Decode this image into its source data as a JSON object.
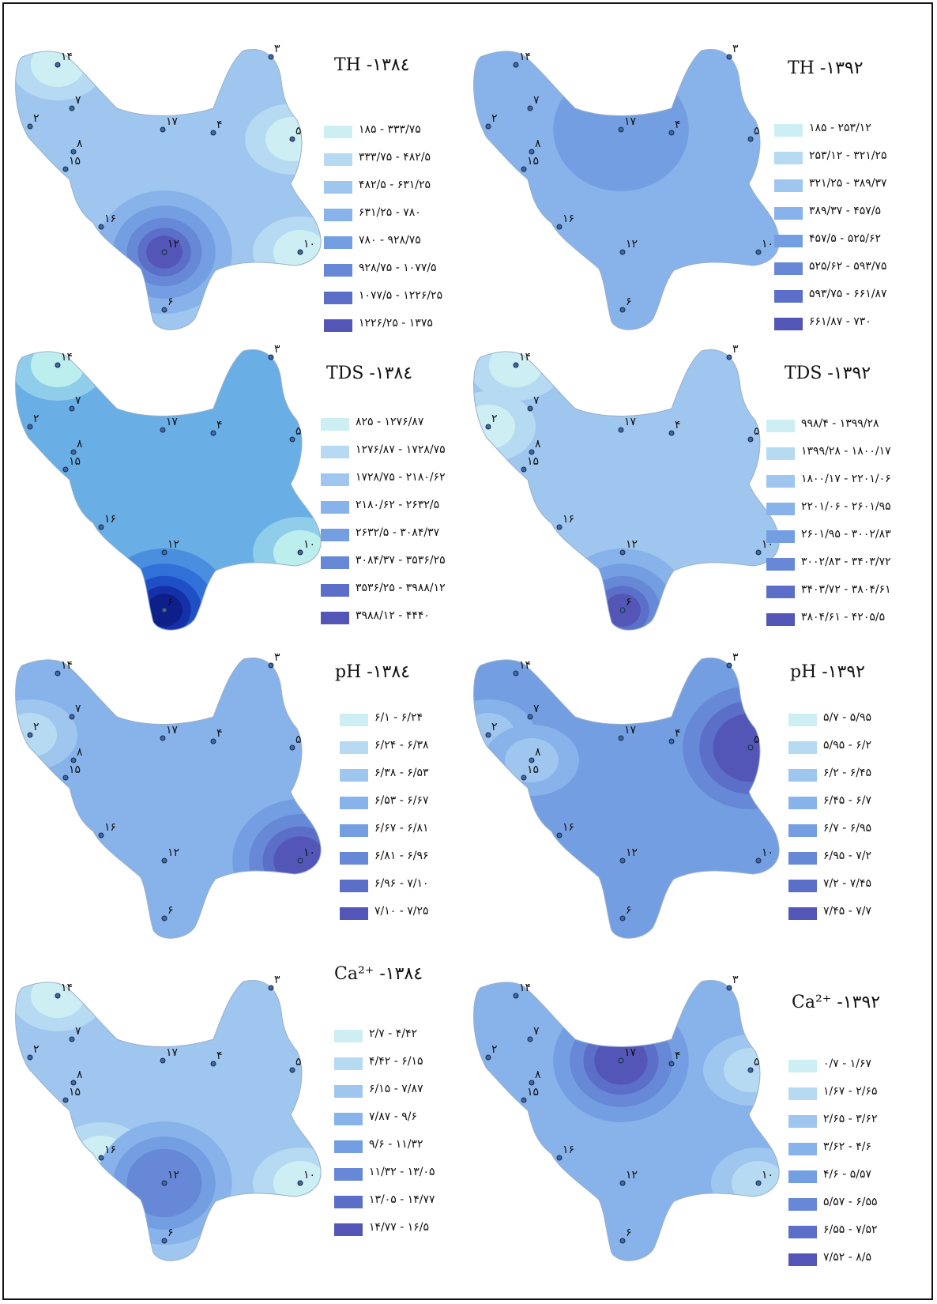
{
  "panels": [
    {
      "id": "th-1384",
      "title": "TH -۱۳۸٤",
      "legend": [
        "۱۸۵ - ۳۳۳/۷۵",
        "۳۳۳/۷۵ - ۴۸۲/۵",
        "۴۸۲/۵ - ۶۳۱/۲۵",
        "۶۳۱/۲۵ - ۷۸۰",
        "۷۸۰ - ۹۲۸/۷۵",
        "۹۲۸/۷۵ - ۱۰۷۷/۵",
        "۱۰۷۷/۵ - ۱۲۲۶/۲۵",
        "۱۲۲۶/۲۵ - ۱۳۷۵"
      ],
      "colors": [
        "#cdeff3",
        "#b6daf2",
        "#9fc6ee",
        "#88b2ea",
        "#739fe2",
        "#6688d6",
        "#5b6fc8",
        "#5356b6"
      ],
      "base_level": 2,
      "hotspot": {
        "well": "۱۲",
        "levels": [
          3,
          4,
          5,
          6,
          7
        ]
      },
      "cool_spots": [
        "۱۴",
        "۱۰",
        "۵"
      ]
    },
    {
      "id": "th-1392",
      "title": "TH -۱۳۹۲",
      "legend": [
        "۱۸۵ - ۲۵۳/۱۲",
        "۲۵۳/۱۲ - ۳۲۱/۲۵",
        "۳۲۱/۲۵ - ۳۸۹/۳۷",
        "۳۸۹/۳۷ - ۴۵۷/۵",
        "۴۵۷/۵ - ۵۲۵/۶۲",
        "۵۲۵/۶۲ - ۵۹۳/۷۵",
        "۵۹۳/۷۵ - ۶۶۱/۸۷",
        "۶۶۱/۸۷ - ۷۳۰"
      ],
      "colors": [
        "#cdeff3",
        "#b6daf2",
        "#9fc6ee",
        "#88b2ea",
        "#739fe2",
        "#6688d6",
        "#5b6fc8",
        "#5356b6"
      ],
      "base_level": 3,
      "hotspot": {
        "well": "۱۷",
        "levels": [
          4
        ]
      },
      "cool_spots": []
    },
    {
      "id": "tds-1384",
      "title": "TDS -۱۳۸٤",
      "legend": [
        "۸۲۵ - ۱۲۷۶/۸۷",
        "۱۲۷۶/۸۷ - ۱۷۲۸/۷۵",
        "۱۷۲۸/۷۵ - ۲۱۸۰/۶۲",
        "۲۱۸۰/۶۲ - ۲۶۳۲/۵",
        "۲۶۳۲/۵ - ۳۰۸۴/۳۷",
        "۳۰۸۴/۳۷ - ۳۵۳۶/۲۵",
        "۳۵۳۶/۲۵ - ۳۹۸۸/۱۲",
        "۳۹۸۸/۱۲ - ۴۴۴۰"
      ],
      "colors": [
        "#cdeff3",
        "#b6daf2",
        "#9fc6ee",
        "#88b2ea",
        "#739fe2",
        "#6688d6",
        "#5b6fc8",
        "#5356b6"
      ],
      "map_colors": [
        "#bdeeee",
        "#8fcdea",
        "#6aaee6",
        "#4a8ee0",
        "#3070d8",
        "#1f4fc4",
        "#1530a8",
        "#0f1f8a"
      ],
      "base_level": 2,
      "hotspot": {
        "well": "۶",
        "levels": [
          3,
          4,
          5,
          6,
          7
        ]
      },
      "cool_spots": [
        "۱۴",
        "۱۰"
      ]
    },
    {
      "id": "tds-1392",
      "title": "TDS -۱۳۹۲",
      "legend": [
        "۹۹۸/۴ - ۱۳۹۹/۲۸",
        "۱۳۹۹/۲۸ - ۱۸۰۰/۱۷",
        "۱۸۰۰/۱۷ - ۲۲۰۱/۰۶",
        "۲۲۰۱/۰۶ - ۲۶۰۱/۹۵",
        "۲۶۰۱/۹۵ - ۳۰۰۲/۸۳",
        "۳۰۰۲/۸۳ - ۳۴۰۳/۷۲",
        "۳۴۰۳/۷۲ - ۳۸۰۴/۶۱",
        "۳۸۰۴/۶۱ - ۴۲۰۵/۵"
      ],
      "colors": [
        "#cdeff3",
        "#b6daf2",
        "#9fc6ee",
        "#88b2ea",
        "#739fe2",
        "#6688d6",
        "#5b6fc8",
        "#5356b6"
      ],
      "base_level": 2,
      "hotspot": {
        "well": "۶",
        "levels": [
          3,
          4,
          5,
          6,
          7
        ]
      },
      "cool_spots": [
        "۱۴",
        "۲"
      ]
    },
    {
      "id": "ph-1384",
      "title": "pH -۱۳۸٤",
      "legend": [
        "۶/۱ - ۶/۲۴",
        "۶/۲۴ - ۶/۳۸",
        "۶/۳۸ - ۶/۵۳",
        "۶/۵۳ - ۶/۶۷",
        "۶/۶۷ - ۶/۸۱",
        "۶/۸۱ - ۶/۹۶",
        "۶/۹۶ - ۷/۱۰",
        "۷/۱۰ - ۷/۲۵"
      ],
      "colors": [
        "#cdeff3",
        "#b6daf2",
        "#9fc6ee",
        "#88b2ea",
        "#739fe2",
        "#6688d6",
        "#5b6fc8",
        "#5356b6"
      ],
      "base_level": 3,
      "hotspot": {
        "well": "۱۰",
        "levels": [
          4,
          5,
          6,
          7
        ]
      },
      "cool_spots": [
        "۲"
      ]
    },
    {
      "id": "ph-1392",
      "title": "pH -۱۳۹۲",
      "legend": [
        "۵/۷ - ۵/۹۵",
        "۵/۹۵ - ۶/۲",
        "۶/۲ - ۶/۴۵",
        "۶/۴۵ - ۶/۷",
        "۶/۷ - ۶/۹۵",
        "۶/۹۵ - ۷/۲",
        "۷/۲ - ۷/۴۵",
        "۷/۴۵ - ۷/۷"
      ],
      "colors": [
        "#cdeff3",
        "#b6daf2",
        "#9fc6ee",
        "#88b2ea",
        "#739fe2",
        "#6688d6",
        "#5b6fc8",
        "#5356b6"
      ],
      "base_level": 4,
      "hotspot": {
        "well": "۵",
        "levels": [
          5,
          6,
          7
        ]
      },
      "cool_spots": [
        "۲",
        "۸"
      ]
    },
    {
      "id": "ca-1384",
      "title": "Ca²⁺ -۱۳۸٤",
      "legend": [
        "۲/۷ - ۴/۴۲",
        "۴/۴۲ - ۶/۱۵",
        "۶/۱۵ - ۷/۸۷",
        "۷/۸۷ - ۹/۶",
        "۹/۶ - ۱۱/۳۲",
        "۱۱/۳۲ - ۱۳/۰۵",
        "۱۳/۰۵ - ۱۴/۷۷",
        "۱۴/۷۷ - ۱۶/۵"
      ],
      "colors": [
        "#cdeff3",
        "#b6daf2",
        "#9fc6ee",
        "#88b2ea",
        "#739fe2",
        "#6688d6",
        "#5b6fc8",
        "#5356b6"
      ],
      "base_level": 2,
      "hotspot": {
        "well": "۱۲",
        "levels": [
          3,
          4,
          5
        ]
      },
      "cool_spots": [
        "۱۴",
        "۱۰",
        "۱۶"
      ]
    },
    {
      "id": "ca-1392",
      "title": "Ca²⁺ -۱۳۹۲",
      "legend": [
        "۰/۷ - ۱/۶۷",
        "۱/۶۷ - ۲/۶۵",
        "۲/۶۵ - ۳/۶۲",
        "۳/۶۲ - ۴/۶",
        "۴/۶ - ۵/۵۷",
        "۵/۵۷ - ۶/۵۵",
        "۶/۵۵ - ۷/۵۲",
        "۷/۵۲ - ۸/۵"
      ],
      "colors": [
        "#cdeff3",
        "#b6daf2",
        "#9fc6ee",
        "#88b2ea",
        "#739fe2",
        "#6688d6",
        "#5b6fc8",
        "#5356b6"
      ],
      "base_level": 3,
      "hotspot": {
        "well": "۱۷",
        "levels": [
          4,
          5,
          6,
          7
        ]
      },
      "cool_spots": [
        "۱۰",
        "۵"
      ]
    }
  ],
  "wells": [
    "۱۴",
    "۳",
    "۷",
    "۲",
    "۱۷",
    "۴",
    "۵",
    "۸",
    "۱۵",
    "۱۶",
    "۱۲",
    "۱۰",
    "۶"
  ]
}
